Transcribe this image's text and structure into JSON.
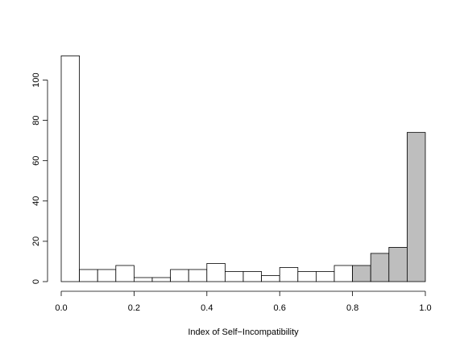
{
  "chart_data": {
    "type": "bar",
    "subtype": "histogram",
    "xlabel": "Index of Self−Incompatibility",
    "ylabel": "",
    "title": "",
    "xlim": [
      0,
      1
    ],
    "ylim": [
      0,
      112
    ],
    "x_ticks": [
      "0.0",
      "0.2",
      "0.4",
      "0.6",
      "0.8",
      "1.0"
    ],
    "y_ticks": [
      "0",
      "20",
      "40",
      "60",
      "80",
      "100"
    ],
    "bin_width": 0.05,
    "bins": [
      {
        "start": 0.0,
        "end": 0.05,
        "count": 112,
        "shaded": false
      },
      {
        "start": 0.05,
        "end": 0.1,
        "count": 6,
        "shaded": false
      },
      {
        "start": 0.1,
        "end": 0.15,
        "count": 6,
        "shaded": false
      },
      {
        "start": 0.15,
        "end": 0.2,
        "count": 8,
        "shaded": false
      },
      {
        "start": 0.2,
        "end": 0.25,
        "count": 2,
        "shaded": false
      },
      {
        "start": 0.25,
        "end": 0.3,
        "count": 2,
        "shaded": false
      },
      {
        "start": 0.3,
        "end": 0.35,
        "count": 6,
        "shaded": false
      },
      {
        "start": 0.35,
        "end": 0.4,
        "count": 6,
        "shaded": false
      },
      {
        "start": 0.4,
        "end": 0.45,
        "count": 9,
        "shaded": false
      },
      {
        "start": 0.45,
        "end": 0.5,
        "count": 5,
        "shaded": false
      },
      {
        "start": 0.5,
        "end": 0.55,
        "count": 5,
        "shaded": false
      },
      {
        "start": 0.55,
        "end": 0.6,
        "count": 3,
        "shaded": false
      },
      {
        "start": 0.6,
        "end": 0.65,
        "count": 7,
        "shaded": false
      },
      {
        "start": 0.65,
        "end": 0.7,
        "count": 5,
        "shaded": false
      },
      {
        "start": 0.7,
        "end": 0.75,
        "count": 5,
        "shaded": false
      },
      {
        "start": 0.75,
        "end": 0.8,
        "count": 8,
        "shaded": false
      },
      {
        "start": 0.8,
        "end": 0.85,
        "count": 8,
        "shaded": true
      },
      {
        "start": 0.85,
        "end": 0.9,
        "count": 14,
        "shaded": true
      },
      {
        "start": 0.9,
        "end": 0.95,
        "count": 17,
        "shaded": true
      },
      {
        "start": 0.95,
        "end": 1.0,
        "count": 74,
        "shaded": true
      }
    ],
    "colors": {
      "unshaded_fill": "#ffffff",
      "shaded_fill": "#bebebe",
      "stroke": "#000000"
    },
    "grid": false,
    "legend": "none"
  }
}
